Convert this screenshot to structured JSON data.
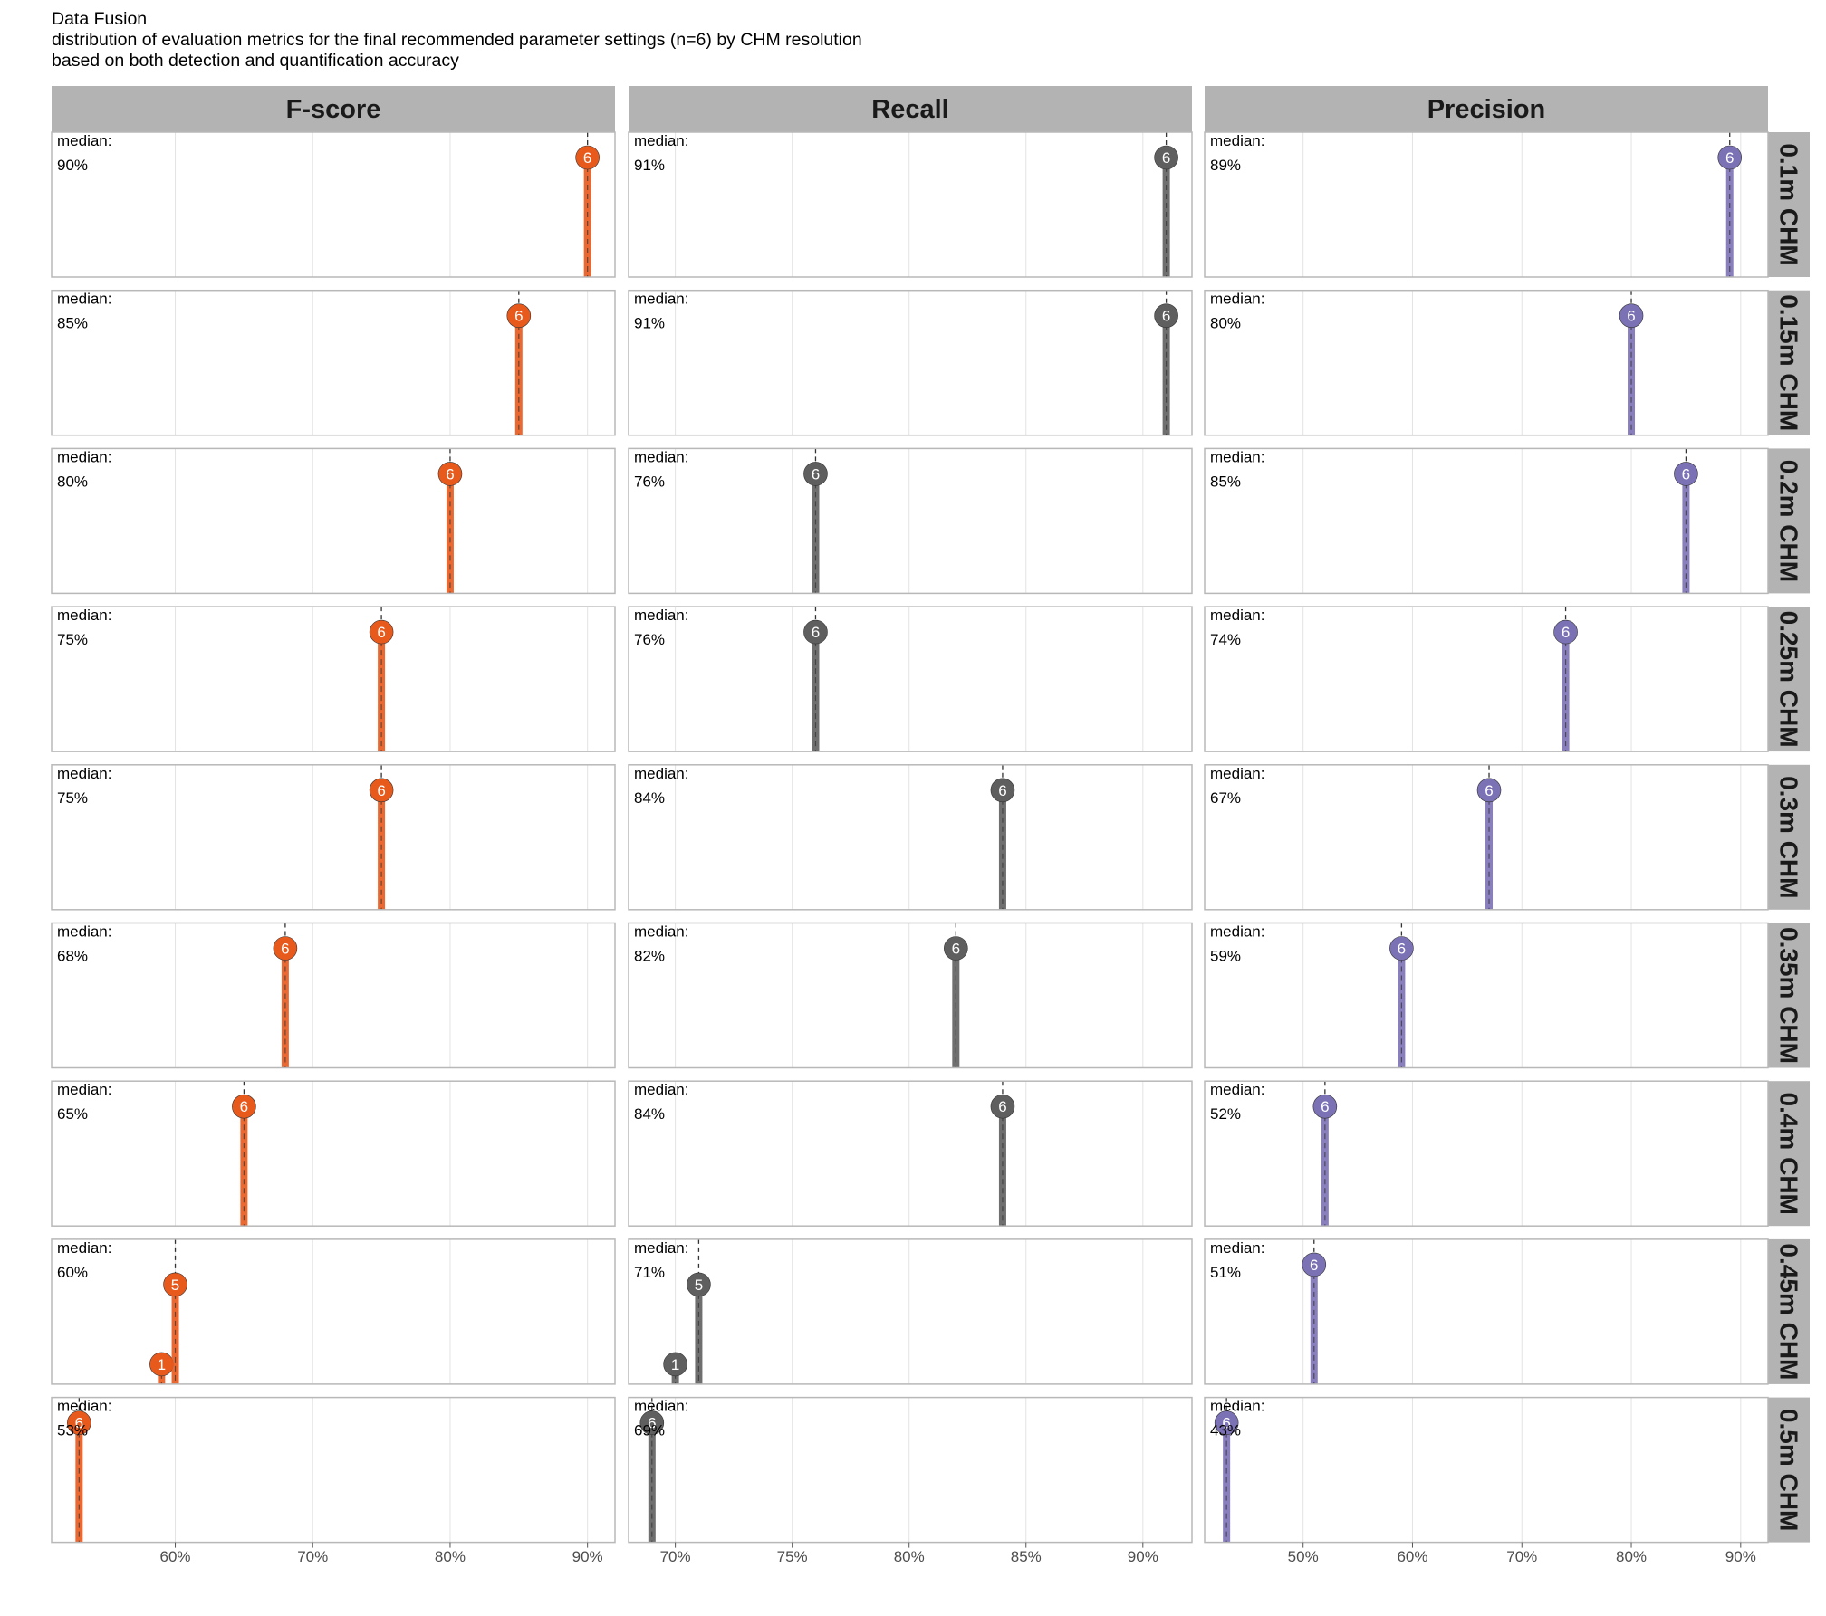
{
  "titles": {
    "title": "Data Fusion",
    "subtitle_line1": "distribution of evaluation metrics for the final recommended parameter settings (n=6) by CHM resolution",
    "subtitle_line2": "based on both detection and quantification accuracy"
  },
  "colors": {
    "strip_background": "#b3b3b3",
    "panel_border": "#b8b8b8",
    "grid": "#e3e3e3",
    "fscore": "#e8591c",
    "recall": "#5f5f5f",
    "precision": "#7b71b5"
  },
  "chart_data": {
    "type": "lollipop",
    "facet_columns": [
      {
        "name": "F-score",
        "color_key": "fscore",
        "xlim": [
          51,
          92
        ],
        "ticks": [
          60,
          70,
          80,
          90
        ],
        "tick_labels": [
          "60%",
          "70%",
          "80%",
          "90%"
        ]
      },
      {
        "name": "Recall",
        "color_key": "recall",
        "xlim": [
          68,
          92.1
        ],
        "ticks": [
          70,
          75,
          80,
          85,
          90
        ],
        "tick_labels": [
          "70%",
          "75%",
          "80%",
          "85%",
          "90%"
        ]
      },
      {
        "name": "Precision",
        "color_key": "precision",
        "xlim": [
          41,
          92.5
        ],
        "ticks": [
          50,
          60,
          70,
          80,
          90
        ],
        "tick_labels": [
          "50%",
          "60%",
          "70%",
          "80%",
          "90%"
        ]
      }
    ],
    "facet_rows": [
      "0.1m CHM",
      "0.15m CHM",
      "0.2m CHM",
      "0.25m CHM",
      "0.3m CHM",
      "0.35m CHM",
      "0.4m CHM",
      "0.45m CHM",
      "0.5m CHM"
    ],
    "median_prefix": "median:",
    "panels": [
      [
        {
          "median": "90%",
          "points": [
            {
              "x": 90,
              "count": 6
            }
          ]
        },
        {
          "median": "91%",
          "points": [
            {
              "x": 91,
              "count": 6
            }
          ]
        },
        {
          "median": "89%",
          "points": [
            {
              "x": 89,
              "count": 6
            }
          ]
        }
      ],
      [
        {
          "median": "85%",
          "points": [
            {
              "x": 85,
              "count": 6
            }
          ]
        },
        {
          "median": "91%",
          "points": [
            {
              "x": 91,
              "count": 6
            }
          ]
        },
        {
          "median": "80%",
          "points": [
            {
              "x": 80,
              "count": 6
            }
          ]
        }
      ],
      [
        {
          "median": "80%",
          "points": [
            {
              "x": 80,
              "count": 6
            }
          ]
        },
        {
          "median": "76%",
          "points": [
            {
              "x": 76,
              "count": 6
            }
          ]
        },
        {
          "median": "85%",
          "points": [
            {
              "x": 85,
              "count": 6
            }
          ]
        }
      ],
      [
        {
          "median": "75%",
          "points": [
            {
              "x": 75,
              "count": 6
            }
          ]
        },
        {
          "median": "76%",
          "points": [
            {
              "x": 76,
              "count": 6
            }
          ]
        },
        {
          "median": "74%",
          "points": [
            {
              "x": 74,
              "count": 6
            }
          ]
        }
      ],
      [
        {
          "median": "75%",
          "points": [
            {
              "x": 75,
              "count": 6
            }
          ]
        },
        {
          "median": "84%",
          "points": [
            {
              "x": 84,
              "count": 6
            }
          ]
        },
        {
          "median": "67%",
          "points": [
            {
              "x": 67,
              "count": 6
            }
          ]
        }
      ],
      [
        {
          "median": "68%",
          "points": [
            {
              "x": 68,
              "count": 6
            }
          ]
        },
        {
          "median": "82%",
          "points": [
            {
              "x": 82,
              "count": 6
            }
          ]
        },
        {
          "median": "59%",
          "points": [
            {
              "x": 59,
              "count": 6
            }
          ]
        }
      ],
      [
        {
          "median": "65%",
          "points": [
            {
              "x": 65,
              "count": 6
            }
          ]
        },
        {
          "median": "84%",
          "points": [
            {
              "x": 84,
              "count": 6
            }
          ]
        },
        {
          "median": "52%",
          "points": [
            {
              "x": 52,
              "count": 6
            }
          ]
        }
      ],
      [
        {
          "median": "60%",
          "points": [
            {
              "x": 59,
              "count": 1
            },
            {
              "x": 60,
              "count": 5
            }
          ]
        },
        {
          "median": "71%",
          "points": [
            {
              "x": 70,
              "count": 1
            },
            {
              "x": 71,
              "count": 5
            }
          ]
        },
        {
          "median": "51%",
          "points": [
            {
              "x": 51,
              "count": 6
            }
          ]
        }
      ],
      [
        {
          "median": "53%",
          "points": [
            {
              "x": 53,
              "count": 6
            }
          ]
        },
        {
          "median": "69%",
          "points": [
            {
              "x": 69,
              "count": 6
            }
          ]
        },
        {
          "median": "43%",
          "points": [
            {
              "x": 43,
              "count": 6
            }
          ]
        }
      ]
    ],
    "y_max_count": 6,
    "grid": true
  }
}
